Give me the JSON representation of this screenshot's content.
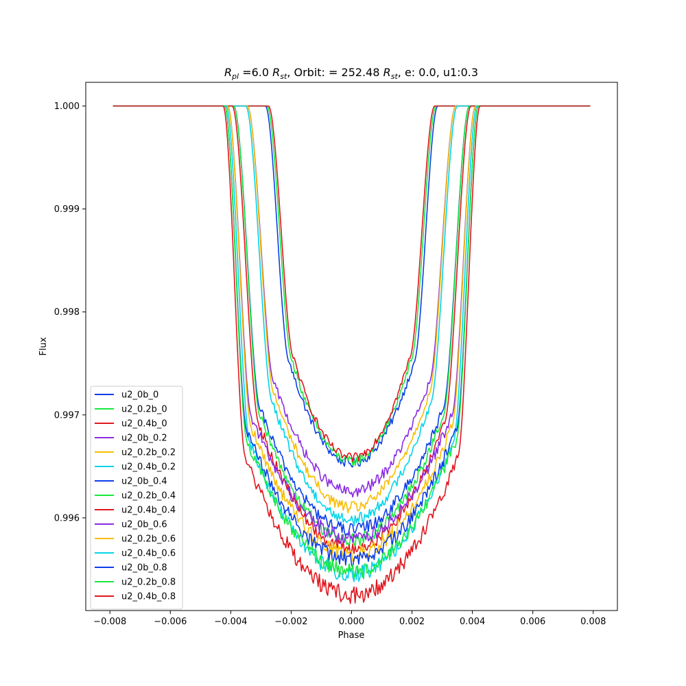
{
  "chart_data": {
    "type": "line",
    "title": {
      "rpl_symbol": "R",
      "rpl_sub": "pl",
      "rpl_value": " =6.0 ",
      "rst_symbol": "R",
      "rst_sub": "st",
      "orbit_text": ", Orbit: = 252.48 ",
      "tail_text": ", e: 0.0, u1:0.3"
    },
    "xlabel": "Phase",
    "ylabel": "Flux",
    "xlim": [
      -0.0088,
      0.0088
    ],
    "ylim": [
      0.9951,
      1.00023
    ],
    "xticks": [
      -0.008,
      -0.006,
      -0.004,
      -0.002,
      0.0,
      0.002,
      0.004,
      0.006,
      0.008
    ],
    "xtick_labels": [
      "−0.008",
      "−0.006",
      "−0.004",
      "−0.002",
      "0.000",
      "0.002",
      "0.004",
      "0.006",
      "0.008"
    ],
    "yticks": [
      0.996,
      0.997,
      0.998,
      0.999,
      1.0
    ],
    "ytick_labels": [
      "0.996",
      "0.997",
      "0.998",
      "0.999",
      "1.000"
    ],
    "grid": false,
    "legend_position": "lower-left",
    "x_range": [
      -0.0079,
      0.0079
    ],
    "series": [
      {
        "name": "u2_0b_0",
        "color": "#0b3de8",
        "depth": 0.99653,
        "t1": -0.00285,
        "t2": -0.00205,
        "noise": 5e-05,
        "skew": 0
      },
      {
        "name": "u2_0.2b_0",
        "color": "#17e83d",
        "depth": 0.99655,
        "t1": -0.0028,
        "t2": -0.00195,
        "noise": 5e-05,
        "skew": 0
      },
      {
        "name": "u2_0.4b_0",
        "color": "#e0161d",
        "depth": 0.99658,
        "t1": -0.00275,
        "t2": -0.0019,
        "noise": 5e-05,
        "skew": 0
      },
      {
        "name": "u2_0b_0.2",
        "color": "#8a2be2",
        "depth": 0.99625,
        "t1": -0.00345,
        "t2": -0.00255,
        "noise": 6e-05,
        "skew": 0
      },
      {
        "name": "u2_0.2b_0.2",
        "color": "#f7bd00",
        "depth": 0.9961,
        "t1": -0.00345,
        "t2": -0.00255,
        "noise": 6e-05,
        "skew": 0
      },
      {
        "name": "u2_0.4b_0.2",
        "color": "#00d4e8",
        "depth": 0.99598,
        "t1": -0.0035,
        "t2": -0.0026,
        "noise": 6e-05,
        "skew": 0
      },
      {
        "name": "u2_0b_0.4",
        "color": "#0b3de8",
        "depth": 0.99588,
        "t1": -0.0039,
        "t2": -0.003,
        "noise": 7e-05,
        "skew": 0
      },
      {
        "name": "u2_0.2b_0.4",
        "color": "#17e83d",
        "depth": 0.99578,
        "t1": -0.0039,
        "t2": -0.003,
        "noise": 7e-05,
        "skew": 0
      },
      {
        "name": "u2_0.4b_0.4",
        "color": "#e0161d",
        "depth": 0.9957,
        "t1": -0.00395,
        "t2": -0.00305,
        "noise": 7e-05,
        "skew": 0
      },
      {
        "name": "u2_0b_0.6",
        "color": "#8a2be2",
        "depth": 0.9958,
        "t1": -0.0041,
        "t2": -0.0033,
        "noise": 8e-05,
        "skew": 0
      },
      {
        "name": "u2_0.2b_0.6",
        "color": "#f7bd00",
        "depth": 0.99565,
        "t1": -0.0041,
        "t2": -0.0033,
        "noise": 8e-05,
        "skew": 0
      },
      {
        "name": "u2_0.4b_0.6",
        "color": "#00d4e8",
        "depth": 0.99545,
        "t1": -0.00415,
        "t2": -0.00335,
        "noise": 8e-05,
        "skew": 0
      },
      {
        "name": "u2_0b_0.8",
        "color": "#0b3de8",
        "depth": 0.9956,
        "t1": -0.0042,
        "t2": -0.00345,
        "noise": 8e-05,
        "skew": 0
      },
      {
        "name": "u2_0.2b_0.8",
        "color": "#17e83d",
        "depth": 0.99548,
        "t1": -0.0042,
        "t2": -0.00345,
        "noise": 8e-05,
        "skew": 0
      },
      {
        "name": "u2_0.4b_0.8",
        "color": "#e0161d",
        "depth": 0.99525,
        "t1": -0.00425,
        "t2": -0.0035,
        "noise": 9e-05,
        "skew": 0
      }
    ]
  }
}
